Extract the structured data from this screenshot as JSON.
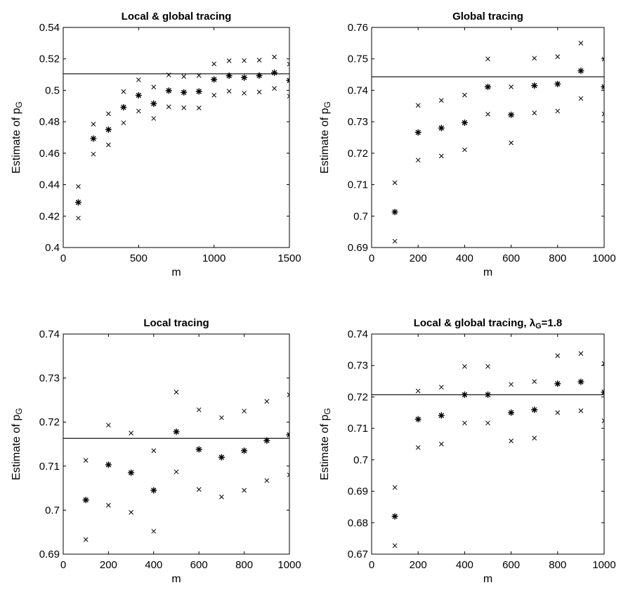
{
  "chart_data": [
    {
      "type": "scatter",
      "title": "Local & global tracing",
      "title_sub": "",
      "title_suffix": "",
      "xlabel": "m",
      "ylabel": "Estimate of p",
      "ylabel_sub": "G",
      "xlim": [
        0,
        1500
      ],
      "ylim": [
        0.4,
        0.54
      ],
      "xticks": [
        0,
        500,
        1000,
        1500
      ],
      "yticks": [
        0.4,
        0.42,
        0.44,
        0.46,
        0.48,
        0.5,
        0.52,
        0.54
      ],
      "xtick_labels": [
        "0",
        "500",
        "1000",
        "1500"
      ],
      "ytick_labels": [
        "0.4",
        "0.42",
        "0.44",
        "0.46",
        "0.48",
        "0.5",
        "0.52",
        "0.54"
      ],
      "reference_line": 0.5105,
      "grid": false,
      "x": [
        100,
        200,
        300,
        400,
        500,
        600,
        700,
        800,
        900,
        1000,
        1100,
        1200,
        1300,
        1400,
        1500
      ],
      "estimate": [
        0.4287,
        0.4693,
        0.475,
        0.4892,
        0.4968,
        0.4915,
        0.4998,
        0.4987,
        0.4993,
        0.5069,
        0.5093,
        0.5081,
        0.5094,
        0.5112,
        0.5063
      ],
      "upper": [
        0.4388,
        0.4785,
        0.4851,
        0.4992,
        0.5067,
        0.5021,
        0.5098,
        0.5088,
        0.5094,
        0.5168,
        0.5188,
        0.5189,
        0.5192,
        0.5212,
        0.5167
      ],
      "lower": [
        0.4187,
        0.4594,
        0.4653,
        0.4793,
        0.4868,
        0.4821,
        0.4895,
        0.4889,
        0.4888,
        0.4969,
        0.4994,
        0.4982,
        0.4989,
        0.5012,
        0.4963
      ]
    },
    {
      "type": "scatter",
      "title": "Global tracing",
      "title_sub": "",
      "title_suffix": "",
      "xlabel": "m",
      "ylabel": "Estimate of p",
      "ylabel_sub": "G",
      "xlim": [
        0,
        1000
      ],
      "ylim": [
        0.69,
        0.76
      ],
      "xticks": [
        0,
        200,
        400,
        600,
        800,
        1000
      ],
      "yticks": [
        0.69,
        0.7,
        0.71,
        0.72,
        0.73,
        0.74,
        0.75,
        0.76
      ],
      "xtick_labels": [
        "0",
        "200",
        "400",
        "600",
        "800",
        "1000"
      ],
      "ytick_labels": [
        "0.69",
        "0.7",
        "0.71",
        "0.72",
        "0.73",
        "0.74",
        "0.75",
        "0.76"
      ],
      "reference_line": 0.7443,
      "grid": false,
      "x": [
        100,
        200,
        300,
        400,
        500,
        600,
        700,
        800,
        900,
        1000
      ],
      "estimate": [
        0.7013,
        0.7266,
        0.728,
        0.7297,
        0.7411,
        0.7322,
        0.7415,
        0.742,
        0.7462,
        0.7411
      ],
      "upper": [
        0.7106,
        0.7352,
        0.7368,
        0.7385,
        0.75,
        0.7411,
        0.7502,
        0.7507,
        0.755,
        0.7499
      ],
      "lower": [
        0.692,
        0.7178,
        0.7191,
        0.7211,
        0.7324,
        0.7233,
        0.7328,
        0.7334,
        0.7374,
        0.7325
      ]
    },
    {
      "type": "scatter",
      "title": "Local tracing",
      "title_sub": "",
      "title_suffix": "",
      "xlabel": "m",
      "ylabel": "Estimate of p",
      "ylabel_sub": "G",
      "xlim": [
        0,
        1000
      ],
      "ylim": [
        0.69,
        0.74
      ],
      "xticks": [
        0,
        200,
        400,
        600,
        800,
        1000
      ],
      "yticks": [
        0.69,
        0.7,
        0.71,
        0.72,
        0.73,
        0.74
      ],
      "xtick_labels": [
        "0",
        "200",
        "400",
        "600",
        "800",
        "1000"
      ],
      "ytick_labels": [
        "0.69",
        "0.7",
        "0.71",
        "0.72",
        "0.73",
        "0.74"
      ],
      "reference_line": 0.7163,
      "grid": false,
      "x": [
        100,
        200,
        300,
        400,
        500,
        600,
        700,
        800,
        900,
        1000
      ],
      "estimate": [
        0.7023,
        0.7103,
        0.7085,
        0.7045,
        0.7178,
        0.7138,
        0.712,
        0.7135,
        0.7158,
        0.7171
      ],
      "upper": [
        0.7113,
        0.7193,
        0.7175,
        0.7135,
        0.7268,
        0.7228,
        0.721,
        0.7225,
        0.7247,
        0.7262
      ],
      "lower": [
        0.6933,
        0.7011,
        0.6995,
        0.6952,
        0.7087,
        0.7047,
        0.703,
        0.7045,
        0.7067,
        0.708
      ]
    },
    {
      "type": "scatter",
      "title": "Local & global tracing, λ",
      "title_sub": "G",
      "title_suffix": "=1.8",
      "xlabel": "m",
      "ylabel": "Estimate of p",
      "ylabel_sub": "G",
      "xlim": [
        0,
        1000
      ],
      "ylim": [
        0.67,
        0.74
      ],
      "xticks": [
        0,
        200,
        400,
        600,
        800,
        1000
      ],
      "yticks": [
        0.67,
        0.68,
        0.69,
        0.7,
        0.71,
        0.72,
        0.73,
        0.74
      ],
      "xtick_labels": [
        "0",
        "200",
        "400",
        "600",
        "800",
        "1000"
      ],
      "ytick_labels": [
        "0.67",
        "0.68",
        "0.69",
        "0.7",
        "0.71",
        "0.72",
        "0.73",
        "0.74"
      ],
      "reference_line": 0.7207,
      "grid": false,
      "x": [
        100,
        200,
        300,
        400,
        500,
        600,
        700,
        800,
        900,
        1000
      ],
      "estimate": [
        0.682,
        0.7129,
        0.7141,
        0.7207,
        0.7207,
        0.715,
        0.7159,
        0.7242,
        0.7248,
        0.7215
      ],
      "upper": [
        0.6912,
        0.7219,
        0.7231,
        0.7297,
        0.7297,
        0.724,
        0.7249,
        0.7331,
        0.7338,
        0.7306
      ],
      "lower": [
        0.6727,
        0.7039,
        0.705,
        0.7117,
        0.7117,
        0.706,
        0.7069,
        0.715,
        0.7156,
        0.7124
      ]
    }
  ]
}
